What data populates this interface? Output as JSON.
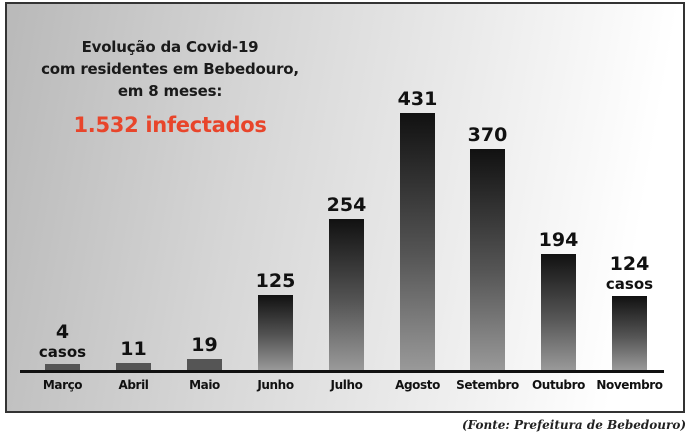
{
  "title_lines": [
    "Evolução da Covid-19",
    "com residentes em Bebedouro,",
    "em 8 meses:"
  ],
  "total_label": "1.532 infectados",
  "unit_label": "casos",
  "source": "(Fonte: Prefeitura de Bebedouro)",
  "colors": {
    "accent": "#e8452b",
    "bar_dark": "#111111",
    "bar_light": "#999999"
  },
  "chart_data": {
    "type": "bar",
    "title": "Evolução da Covid-19 com residentes em Bebedouro, em 8 meses: 1.532 infectados",
    "categories": [
      "Março",
      "Abril",
      "Maio",
      "Junho",
      "Julho",
      "Agosto",
      "Setembro",
      "Outubro",
      "Novembro"
    ],
    "values": [
      4,
      11,
      19,
      125,
      254,
      431,
      370,
      194,
      124
    ],
    "value_labels": [
      "4",
      "11",
      "19",
      "125",
      "254",
      "431",
      "370",
      "194",
      "124"
    ],
    "xlabel": "",
    "ylabel": "casos",
    "ylim": [
      0,
      431
    ],
    "grid": false,
    "legend": null
  }
}
